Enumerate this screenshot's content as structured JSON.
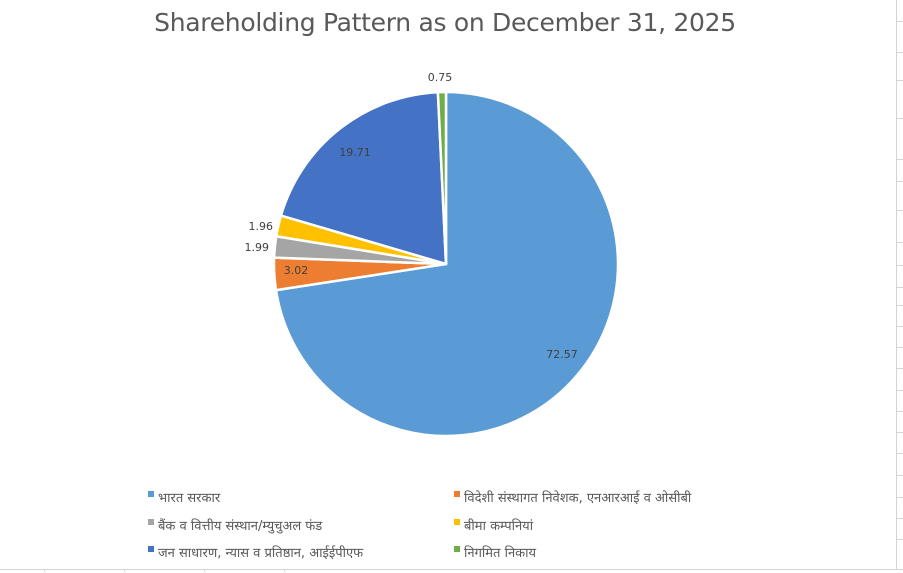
{
  "chart": {
    "title": "Shareholding Pattern as on December 31, 2025"
  },
  "chart_data": {
    "type": "pie",
    "title": "Shareholding Pattern as on December 31, 2025",
    "start_angle": "12 o'clock, clockwise",
    "categories": [
      "भारत सरकार",
      "विदेशी संस्थागत निवेशक, एनआरआई व ओसीबी",
      "बैंक व वित्तीय संस्थान/म्युचुअल फंड",
      "बीमा कम्पनियां",
      "जन साधारण, न्यास व प्रतिष्ठान, आईईपीएफ",
      "निगमित निकाय"
    ],
    "values": [
      72.57,
      3.02,
      1.99,
      1.96,
      19.71,
      0.75
    ],
    "colors": [
      "#5B9BD5",
      "#ED7D31",
      "#A5A5A5",
      "#FFC000",
      "#4472C4",
      "#70AD47"
    ],
    "data_labels": [
      "72.57",
      "3.02",
      "1.99",
      "1.96",
      "19.71",
      "0.75"
    ],
    "legend_position": "bottom"
  },
  "legend": {
    "items": [
      {
        "label": "भारत सरकार",
        "color": "#5B9BD5"
      },
      {
        "label": "विदेशी संस्थागत निवेशक, एनआरआई व ओसीबी",
        "color": "#ED7D31"
      },
      {
        "label": "बैंक व वित्तीय संस्थान/म्युचुअल फंड",
        "color": "#A5A5A5"
      },
      {
        "label": "बीमा कम्पनियां",
        "color": "#FFC000"
      },
      {
        "label": "जन साधारण, न्यास व प्रतिष्ठान, आईईपीएफ",
        "color": "#4472C4"
      },
      {
        "label": "निगमित निकाय",
        "color": "#70AD47"
      }
    ]
  }
}
